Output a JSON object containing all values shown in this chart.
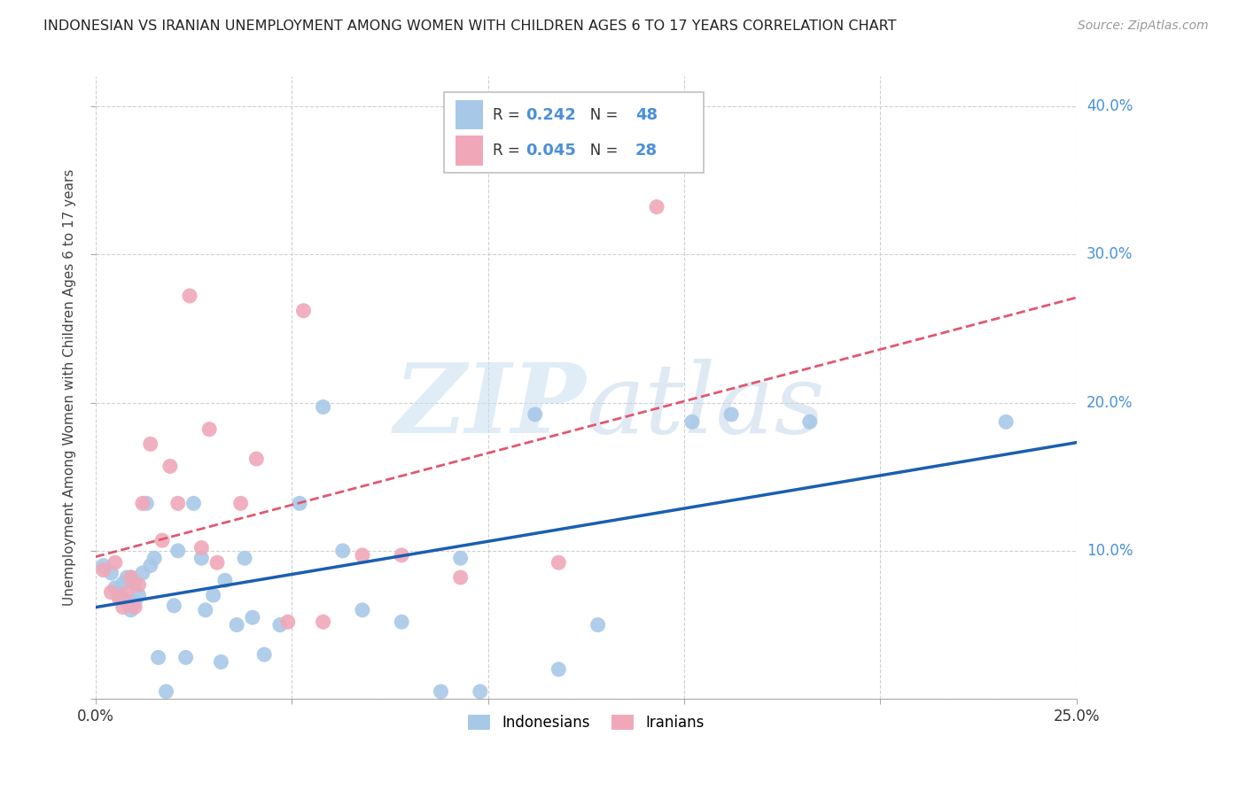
{
  "title": "INDONESIAN VS IRANIAN UNEMPLOYMENT AMONG WOMEN WITH CHILDREN AGES 6 TO 17 YEARS CORRELATION CHART",
  "source": "Source: ZipAtlas.com",
  "ylabel": "Unemployment Among Women with Children Ages 6 to 17 years",
  "xlim": [
    0.0,
    0.25
  ],
  "ylim": [
    0.0,
    0.42
  ],
  "x_ticks": [
    0.0,
    0.05,
    0.1,
    0.15,
    0.2,
    0.25
  ],
  "y_ticks": [
    0.0,
    0.1,
    0.2,
    0.3,
    0.4
  ],
  "background_color": "#ffffff",
  "grid_color": "#d0d0d0",
  "indonesian_color": "#a8c8e8",
  "iranian_color": "#f0a8b8",
  "indonesian_line_color": "#1a5fb0",
  "iranian_line_color": "#e05870",
  "legend_R_indonesian": "0.242",
  "legend_N_indonesian": "48",
  "legend_R_iranian": "0.045",
  "legend_N_iranian": "28",
  "indo_x": [
    0.002,
    0.004,
    0.005,
    0.006,
    0.007,
    0.007,
    0.008,
    0.008,
    0.009,
    0.009,
    0.01,
    0.01,
    0.011,
    0.012,
    0.013,
    0.014,
    0.015,
    0.016,
    0.018,
    0.02,
    0.021,
    0.023,
    0.025,
    0.027,
    0.028,
    0.03,
    0.032,
    0.033,
    0.036,
    0.038,
    0.04,
    0.043,
    0.047,
    0.052,
    0.058,
    0.063,
    0.068,
    0.078,
    0.088,
    0.093,
    0.098,
    0.112,
    0.118,
    0.128,
    0.152,
    0.162,
    0.182,
    0.232
  ],
  "indo_y": [
    0.09,
    0.085,
    0.075,
    0.07,
    0.068,
    0.078,
    0.082,
    0.065,
    0.06,
    0.082,
    0.078,
    0.065,
    0.07,
    0.085,
    0.132,
    0.09,
    0.095,
    0.028,
    0.005,
    0.063,
    0.1,
    0.028,
    0.132,
    0.095,
    0.06,
    0.07,
    0.025,
    0.08,
    0.05,
    0.095,
    0.055,
    0.03,
    0.05,
    0.132,
    0.197,
    0.1,
    0.06,
    0.052,
    0.005,
    0.095,
    0.005,
    0.192,
    0.02,
    0.05,
    0.187,
    0.192,
    0.187,
    0.187
  ],
  "iran_x": [
    0.002,
    0.004,
    0.005,
    0.006,
    0.007,
    0.008,
    0.009,
    0.01,
    0.011,
    0.012,
    0.014,
    0.017,
    0.019,
    0.021,
    0.024,
    0.027,
    0.029,
    0.031,
    0.037,
    0.041,
    0.049,
    0.053,
    0.058,
    0.068,
    0.078,
    0.093,
    0.118,
    0.143
  ],
  "iran_y": [
    0.087,
    0.072,
    0.092,
    0.068,
    0.062,
    0.072,
    0.082,
    0.062,
    0.077,
    0.132,
    0.172,
    0.107,
    0.157,
    0.132,
    0.272,
    0.102,
    0.182,
    0.092,
    0.132,
    0.162,
    0.052,
    0.262,
    0.052,
    0.097,
    0.097,
    0.082,
    0.092,
    0.332
  ]
}
